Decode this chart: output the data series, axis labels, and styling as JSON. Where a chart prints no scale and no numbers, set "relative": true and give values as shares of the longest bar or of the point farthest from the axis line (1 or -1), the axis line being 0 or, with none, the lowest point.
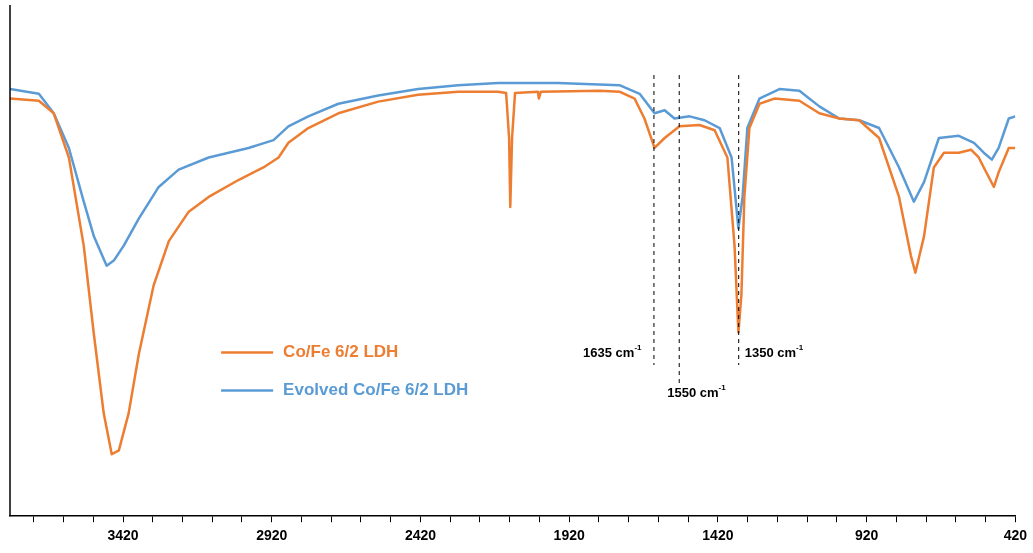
{
  "chart_data": {
    "type": "line",
    "relative": true,
    "legend": "left",
    "marker": "none",
    "line_style": "solid",
    "grid": false,
    "xlim": [
      3800,
      420
    ],
    "xticks": [
      {
        "value": 3720,
        "label": null
      },
      {
        "value": 3620,
        "label": null
      },
      {
        "value": 3520,
        "label": null
      },
      3420,
      {
        "value": 3320,
        "label": null
      },
      {
        "value": 3220,
        "label": null
      },
      {
        "value": 3120,
        "label": null
      },
      {
        "value": 3020,
        "label": null
      },
      2920,
      {
        "value": 2820,
        "label": null
      },
      {
        "value": 2720,
        "label": null
      },
      {
        "value": 2620,
        "label": null
      },
      {
        "value": 2520,
        "label": null
      },
      2420,
      {
        "value": 2320,
        "label": null
      },
      {
        "value": 2220,
        "label": null
      },
      {
        "value": 2120,
        "label": null
      },
      {
        "value": 2020,
        "label": null
      },
      1920,
      {
        "value": 1820,
        "label": null
      },
      {
        "value": 1720,
        "label": null
      },
      {
        "value": 1620,
        "label": null
      },
      {
        "value": 1520,
        "label": null
      },
      1420,
      {
        "value": 1320,
        "label": null
      },
      {
        "value": 1220,
        "label": null
      },
      {
        "value": 1120,
        "label": null
      },
      {
        "value": 1020,
        "label": null
      },
      920,
      {
        "value": 820,
        "label": null
      },
      {
        "value": 720,
        "label": null
      },
      {
        "value": 620,
        "label": null
      },
      {
        "value": 520,
        "label": null
      },
      420
    ],
    "series": [
      {
        "name": "Co/Fe 6/2 LDH",
        "color": "#ed7d31",
        "x": [
          3800,
          3703,
          3653,
          3602,
          3552,
          3518,
          3485,
          3458,
          3434,
          3401,
          3367,
          3317,
          3266,
          3199,
          3132,
          3032,
          2948,
          2897,
          2864,
          2797,
          2696,
          2562,
          2428,
          2293,
          2159,
          2132,
          2122,
          2118,
          2112,
          2102,
          2025,
          2022,
          2015,
          1818,
          1751,
          1700,
          1667,
          1633,
          1599,
          1549,
          1482,
          1431,
          1388,
          1364,
          1351,
          1341,
          1331,
          1314,
          1280,
          1230,
          1146,
          1079,
          1012,
          945,
          878,
          811,
          771,
          756,
          727,
          694,
          660,
          610,
          569,
          543,
          526,
          492,
          476,
          442,
          420
        ],
        "values": [
          0.964,
          0.959,
          0.93,
          0.828,
          0.624,
          0.42,
          0.238,
          0.143,
          0.152,
          0.238,
          0.374,
          0.533,
          0.635,
          0.703,
          0.737,
          0.776,
          0.805,
          0.828,
          0.862,
          0.896,
          0.93,
          0.957,
          0.973,
          0.98,
          0.98,
          0.977,
          0.873,
          0.714,
          0.873,
          0.977,
          0.98,
          0.964,
          0.98,
          0.982,
          0.98,
          0.964,
          0.918,
          0.85,
          0.873,
          0.9,
          0.903,
          0.891,
          0.828,
          0.624,
          0.424,
          0.51,
          0.737,
          0.896,
          0.952,
          0.964,
          0.959,
          0.93,
          0.918,
          0.914,
          0.873,
          0.737,
          0.601,
          0.562,
          0.646,
          0.805,
          0.839,
          0.839,
          0.846,
          0.828,
          0.805,
          0.76,
          0.794,
          0.85,
          0.85
        ]
      },
      {
        "name": "Evolved Co/Fe 6/2 LDH",
        "color": "#5b9bd5",
        "x": [
          3800,
          3703,
          3653,
          3602,
          3552,
          3518,
          3475,
          3451,
          3418,
          3367,
          3300,
          3233,
          3132,
          2998,
          2914,
          2864,
          2797,
          2696,
          2562,
          2428,
          2293,
          2159,
          1958,
          1751,
          1683,
          1633,
          1599,
          1566,
          1515,
          1465,
          1414,
          1374,
          1351,
          1337,
          1321,
          1280,
          1213,
          1146,
          1079,
          1012,
          945,
          878,
          811,
          761,
          727,
          677,
          610,
          559,
          526,
          499,
          476,
          442,
          420
        ],
        "values": [
          0.986,
          0.975,
          0.93,
          0.85,
          0.726,
          0.646,
          0.578,
          0.59,
          0.624,
          0.687,
          0.76,
          0.8,
          0.828,
          0.85,
          0.868,
          0.9,
          0.923,
          0.952,
          0.971,
          0.986,
          0.995,
          1,
          1,
          0.995,
          0.975,
          0.93,
          0.937,
          0.918,
          0.923,
          0.914,
          0.896,
          0.828,
          0.664,
          0.737,
          0.896,
          0.964,
          0.986,
          0.982,
          0.946,
          0.918,
          0.914,
          0.896,
          0.805,
          0.726,
          0.771,
          0.873,
          0.878,
          0.862,
          0.839,
          0.823,
          0.85,
          0.918,
          0.923
        ]
      }
    ],
    "ref_lines": [
      {
        "axis": "x",
        "value": 1635,
        "label": "1635 cm$^{-1}$",
        "color": "#000000",
        "line_style": "dashed"
      },
      {
        "axis": "x",
        "value": 1550,
        "label": "1550 cm$^{-1}$",
        "color": "#000000",
        "line_style": "dashed"
      },
      {
        "axis": "x",
        "value": 1350,
        "label": "1350 cm$^{-1}$",
        "color": "#000000",
        "line_style": "dashed"
      }
    ]
  }
}
